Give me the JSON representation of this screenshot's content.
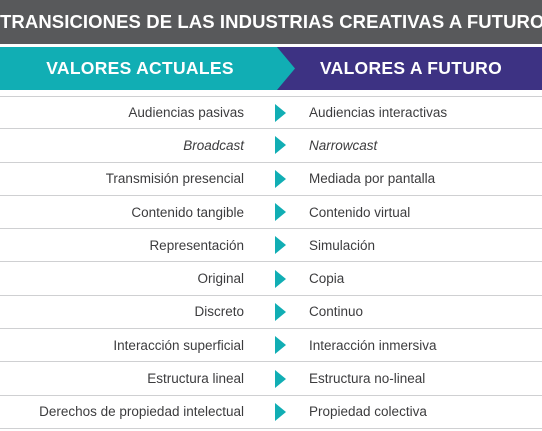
{
  "title": "TRANSICIONES DE LAS INDUSTRIAS CREATIVAS A FUTURO",
  "header": {
    "left": "VALORES ACTUALES",
    "right": "VALORES A FUTURO"
  },
  "colors": {
    "title_bg": "#58595b",
    "left_header_bg": "#11aeb4",
    "right_header_bg": "#3d3283",
    "arrow": "#11aeb4"
  },
  "arrow_icon": "triangle-right-icon",
  "rows": [
    {
      "left": "Audiencias pasivas",
      "right": "Audiencias interactivas",
      "italic": false
    },
    {
      "left": "Broadcast",
      "right": "Narrowcast",
      "italic": true
    },
    {
      "left": "Transmisión presencial",
      "right": "Mediada por pantalla",
      "italic": false
    },
    {
      "left": "Contenido tangible",
      "right": "Contenido virtual",
      "italic": false
    },
    {
      "left": "Representación",
      "right": "Simulación",
      "italic": false
    },
    {
      "left": "Original",
      "right": "Copia",
      "italic": false
    },
    {
      "left": "Discreto",
      "right": "Continuo",
      "italic": false
    },
    {
      "left": "Interacción superficial",
      "right": "Interacción inmersiva",
      "italic": false
    },
    {
      "left": "Estructura lineal",
      "right": "Estructura no-lineal",
      "italic": false
    },
    {
      "left": "Derechos de propiedad intelectual",
      "right": "Propiedad colectiva",
      "italic": false
    }
  ]
}
